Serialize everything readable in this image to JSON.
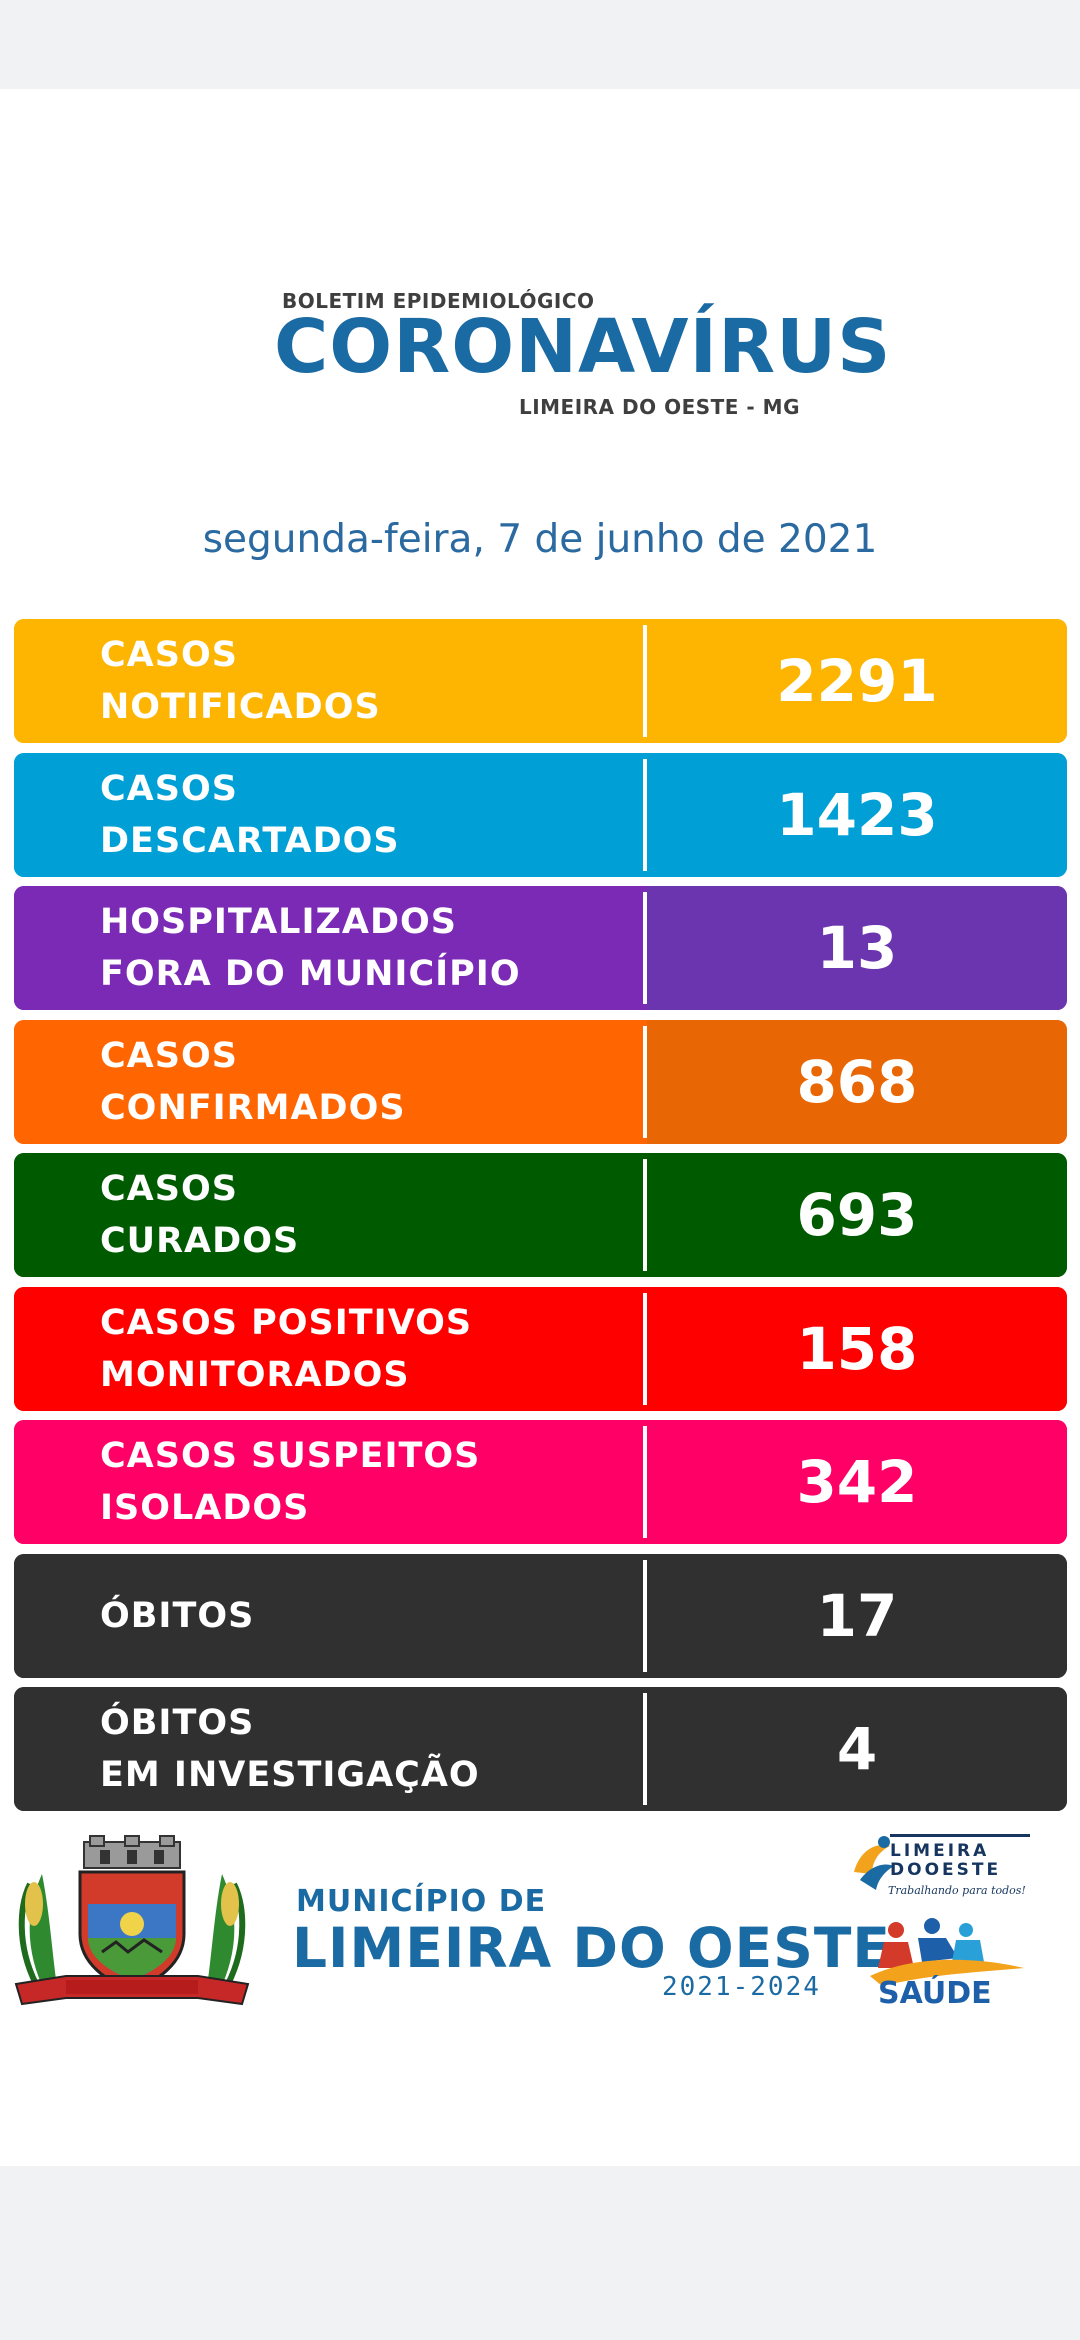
{
  "header": {
    "kicker": "BOLETIM EPIDEMIOLÓGICO",
    "title": "CORONAVÍRUS",
    "place": "LIMEIRA DO OESTE - MG",
    "date": "segunda-feira, 7 de junho de 2021"
  },
  "rows": [
    {
      "label": "CASOS\nNOTIFICADOS",
      "value": "2291",
      "color_left": "#fdb502",
      "color_right": "#fdb502"
    },
    {
      "label": "CASOS\nDESCARTADOS",
      "value": "1423",
      "color_left": "#00a0d6",
      "color_right": "#00a0d6"
    },
    {
      "label": "HOSPITALIZADOS\nFORA DO MUNICÍPIO",
      "value": "13",
      "color_left": "#7b2ab5",
      "color_right": "#6b35b0"
    },
    {
      "label": "CASOS\nCONFIRMADOS",
      "value": "868",
      "color_left": "#ff6602",
      "color_right": "#e86603"
    },
    {
      "label": "CASOS\nCURADOS",
      "value": "693",
      "color_left": "#005a00",
      "color_right": "#005a00"
    },
    {
      "label": "CASOS POSITIVOS\nMONITORADOS",
      "value": "158",
      "color_left": "#fe0000",
      "color_right": "#fe0000"
    },
    {
      "label": "CASOS SUSPEITOS\nISOLADOS",
      "value": "342",
      "color_left": "#fe0066",
      "color_right": "#fe0066"
    },
    {
      "label": "ÓBITOS",
      "value": "17",
      "color_left": "#303030",
      "color_right": "#303030"
    },
    {
      "label": "ÓBITOS\nEM INVESTIGAÇÃO",
      "value": "4",
      "color_left": "#303030",
      "color_right": "#303030"
    }
  ],
  "footer": {
    "crest_icon": "municipal-crest-icon",
    "municipality_small": "MUNICÍPIO DE",
    "municipality_big": "LIMEIRA DO OESTE",
    "term": "2021-2024",
    "gov_logo": {
      "name": "LIMEIRA\nDOOESTE",
      "slogan": "Trabalhando para todos!"
    },
    "health_logo": {
      "word": "SAÚDE"
    }
  }
}
